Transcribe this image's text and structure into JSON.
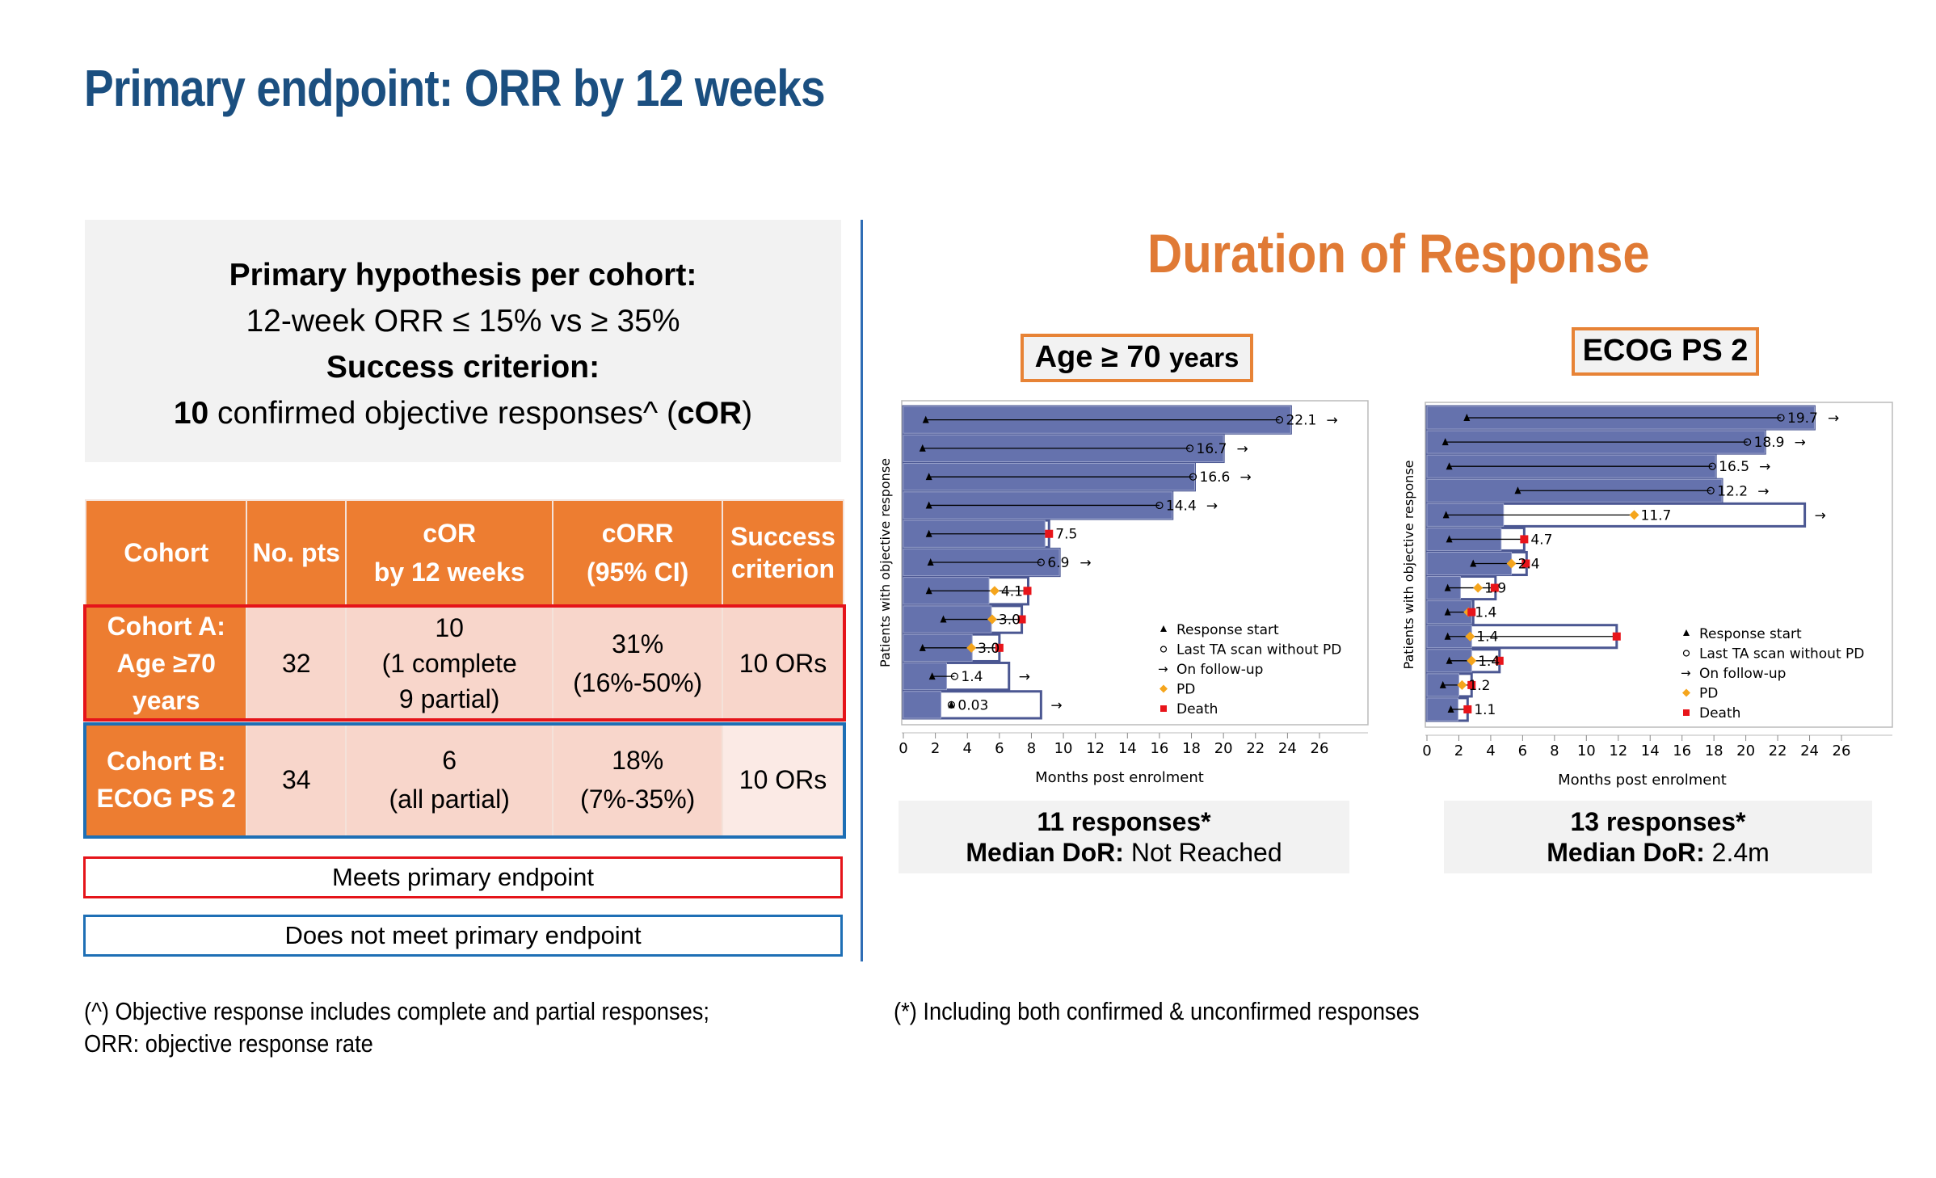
{
  "title": "Primary endpoint: ORR by 12 weeks",
  "hypothesis": {
    "line1": "Primary hypothesis per cohort:",
    "line2": "12-week ORR ≤ 15% vs ≥ 35%",
    "line3": "Success criterion:",
    "line4_a": "10",
    "line4_b": " confirmed objective responses^ (",
    "line4_c": "cOR",
    "line4_d": ")"
  },
  "table": {
    "headers": [
      "Cohort",
      "No. pts",
      "cOR",
      "by 12 weeks",
      "cORR",
      "(95% CI)",
      "Success",
      "criterion"
    ],
    "rows": [
      {
        "cohort": [
          "Cohort A:",
          "Age ≥70",
          "years"
        ],
        "n": "32",
        "cor": [
          "10",
          "(1 complete",
          "9 partial)"
        ],
        "corr": [
          "31%",
          "(16%-50%)"
        ],
        "success": "10 ORs"
      },
      {
        "cohort": [
          "Cohort B:",
          "ECOG PS 2"
        ],
        "n": "34",
        "cor": [
          "6",
          "(all partial)"
        ],
        "corr": [
          "18%",
          "(7%-35%)"
        ],
        "success": "10 ORs"
      }
    ]
  },
  "legend": {
    "meets": "Meets primary endpoint",
    "not_meets": "Does not meet primary endpoint"
  },
  "footnotes": {
    "left1": "(^) Objective response includes complete and partial responses;",
    "left2": "ORR: objective response rate",
    "right": "(*) Including both confirmed & unconfirmed responses"
  },
  "dor_title": "Duration of Response",
  "panels": [
    {
      "tag_a": "Age ≥ 70 ",
      "tag_b": "years",
      "responses": "11 responses*",
      "median_label": "Median DoR:",
      "median_value": " Not Reached"
    },
    {
      "tag_a": "ECOG PS 2",
      "tag_b": "",
      "responses": "13 responses*",
      "median_label": "Median DoR:",
      "median_value": " 2.4m"
    }
  ],
  "colors": {
    "bar": "#6572ad",
    "box": "#4b5792",
    "pd": "#f5a51c",
    "death": "#e8141a"
  },
  "chart_data": [
    {
      "type": "swimmer",
      "title": "Age ≥ 70 years",
      "xlabel": "Months post enrolment",
      "ylabel": "Patients with objective response",
      "xlim": [
        0,
        26
      ],
      "xticks": [
        0,
        2,
        4,
        6,
        8,
        10,
        12,
        14,
        16,
        18,
        20,
        22,
        24,
        26
      ],
      "legend": [
        "Response start",
        "Last TA scan without PD",
        "On follow-up",
        "PD",
        "Death"
      ],
      "legend_position": "bottom-right",
      "rows": [
        {
          "start": 1.4,
          "scan": 23.5,
          "shaded": 24.2,
          "box": 24.2,
          "label": "22.1",
          "followup": true
        },
        {
          "start": 1.2,
          "scan": 17.9,
          "shaded": 20.0,
          "box": 20.0,
          "label": "16.7",
          "followup": true
        },
        {
          "start": 1.6,
          "scan": 18.1,
          "shaded": 18.2,
          "box": 18.2,
          "label": "16.6",
          "followup": true
        },
        {
          "start": 1.6,
          "scan": 16.0,
          "shaded": 16.8,
          "box": 16.8,
          "label": "14.4",
          "followup": true
        },
        {
          "start": 1.6,
          "death": 9.1,
          "shaded": 8.85,
          "box": 9.1,
          "label": "7.5",
          "followup": false
        },
        {
          "start": 1.7,
          "scan": 8.6,
          "shaded": 9.75,
          "box": 9.75,
          "label": "6.9",
          "followup": true
        },
        {
          "start": 1.6,
          "pd": 5.7,
          "death": 7.75,
          "shaded": 5.35,
          "box": 7.8,
          "label": "4.1",
          "followup": false
        },
        {
          "start": 2.5,
          "pd": 5.55,
          "death": 7.4,
          "shaded": 5.5,
          "box": 7.4,
          "label": "3.0",
          "followup": false
        },
        {
          "start": 1.2,
          "pd": 4.25,
          "death": 6.0,
          "shaded": 4.3,
          "box": 6.0,
          "label": "3.0",
          "followup": false
        },
        {
          "start": 1.8,
          "scan": 3.2,
          "shaded": 2.7,
          "box": 6.6,
          "label": "1.4",
          "followup": true
        },
        {
          "start": 3.0,
          "scan": 3.0,
          "shaded": 2.35,
          "box": 8.6,
          "label": "0.03",
          "followup": true
        }
      ]
    },
    {
      "type": "swimmer",
      "title": "ECOG PS 2",
      "xlabel": "Months post enrolment",
      "ylabel": "Patients with objective response",
      "xlim": [
        0,
        26
      ],
      "xticks": [
        0,
        2,
        4,
        6,
        8,
        10,
        12,
        14,
        16,
        18,
        20,
        22,
        24,
        26
      ],
      "legend": [
        "Response start",
        "Last TA scan without PD",
        "On follow-up",
        "PD",
        "Death"
      ],
      "legend_position": "bottom-right",
      "rows": [
        {
          "start": 2.5,
          "scan": 22.2,
          "shaded": 24.3,
          "box": 24.3,
          "label": "19.7",
          "followup": true
        },
        {
          "start": 1.15,
          "scan": 20.1,
          "shaded": 21.2,
          "box": 21.2,
          "label": "18.9",
          "followup": true
        },
        {
          "start": 1.4,
          "scan": 17.9,
          "shaded": 18.1,
          "box": 18.1,
          "label": "16.5",
          "followup": true
        },
        {
          "start": 5.7,
          "scan": 17.8,
          "shaded": 18.5,
          "box": 18.5,
          "label": "12.2",
          "followup": true
        },
        {
          "start": 1.2,
          "pd": 13.0,
          "shaded": 4.8,
          "box": 23.7,
          "label": "11.7",
          "followup": true
        },
        {
          "start": 1.4,
          "death": 6.1,
          "shaded": 4.65,
          "box": 6.1,
          "label": "4.7",
          "followup": false
        },
        {
          "start": 2.9,
          "pd": 5.3,
          "death": 6.2,
          "shaded": 5.3,
          "box": 6.25,
          "label": "2.4",
          "followup": false
        },
        {
          "start": 1.3,
          "pd": 3.2,
          "death": 4.25,
          "shaded": 2.1,
          "box": 4.3,
          "label": "1.9",
          "followup": false
        },
        {
          "start": 1.3,
          "pd": 2.6,
          "death": 2.8,
          "shaded": 2.8,
          "box": 2.9,
          "label": "1.4",
          "followup": false
        },
        {
          "start": 1.3,
          "pd": 2.7,
          "death": 11.9,
          "shaded": 2.8,
          "box": 11.9,
          "label": "1.4",
          "followup": false
        },
        {
          "start": 1.4,
          "pd": 2.8,
          "death": 4.55,
          "shaded": 2.8,
          "box": 4.55,
          "label": "1.4",
          "followup": false
        },
        {
          "start": 1.0,
          "pd": 2.2,
          "death": 2.8,
          "shaded": 2.0,
          "box": 2.8,
          "label": "1.2",
          "followup": false
        },
        {
          "start": 1.5,
          "death": 2.55,
          "shaded": 1.95,
          "box": 2.55,
          "label": "1.1",
          "followup": false
        }
      ]
    }
  ]
}
